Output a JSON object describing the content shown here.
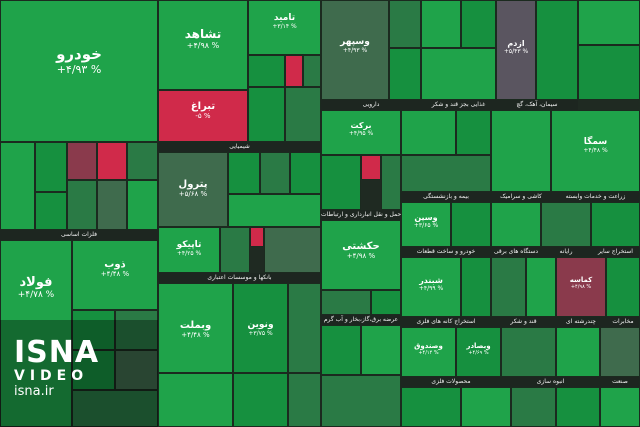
{
  "tiles": {
    "khodro": {
      "name": "خودرو",
      "pct": "+۴/۹۳ %"
    },
    "tashad": {
      "name": "تشاهد",
      "pct": "+۴/۹۸ %"
    },
    "tabragh": {
      "name": "تبراغ",
      "pct": "-۵ %"
    },
    "tamid": {
      "name": "تامید",
      "pct": "+۳/۱۴ %"
    },
    "vsepahr": {
      "name": "وسپهر",
      "pct": "+۴/۹۳ %"
    },
    "kezdam": {
      "name": "ازدم",
      "pct": "+۵/۴۳ %"
    },
    "petrol": {
      "name": "پترول",
      "pct": "+۵/۶۸ %"
    },
    "tapico": {
      "name": "تاپیکو",
      "pct": "+۴/۲۵ %"
    },
    "hekeshti": {
      "name": "حکشتی",
      "pct": "+۴/۹۸ %"
    },
    "fooolad": {
      "name": "فولاد",
      "pct": "+۴/۷۸ %"
    },
    "zob": {
      "name": "ذوب",
      "pct": "+۴/۴۸ %"
    },
    "vmelat": {
      "name": "وبملت",
      "pct": "+۴/۴۸ %"
    },
    "vnovin": {
      "name": "ونوین",
      "pct": "+۳/۷۵ %"
    },
    "vsina": {
      "name": "وسین",
      "pct": "+۳/۶۵ %"
    },
    "shabandar": {
      "name": "شبندر",
      "pct": "+۴/۹۹ %"
    },
    "semga": {
      "name": "سمگا",
      "pct": "+۴/۴۸ %"
    },
    "barekat": {
      "name": "برکت",
      "pct": "+۴/۹۵ %"
    },
    "kema": {
      "name": "کماسه",
      "pct": "+۴/۹۸ %"
    },
    "vsadr": {
      "name": "وصندوق",
      "pct": "+۴/۱۴ %"
    },
    "vbpasar": {
      "name": "وبصادر",
      "pct": "+۴/۶۹ %"
    }
  },
  "sectors": {
    "vasayel": "فلزات اساسی",
    "shimiaei": "شیمیایی",
    "daroui": "دارویی",
    "ghazaei": "غذایی بجز قند و شکر",
    "siman": "سیمان، آهک، گچ",
    "hamlonaghl": "حمل و نقل انبارداری و ارتباطات",
    "bimeh": "بیمه و بازنشستگی",
    "kashi": "کاشی و سرامیک",
    "zeraat": "زراعت و خدمات وابسته",
    "bank": "بانکها و موسسات اعتباری",
    "arzeh": "عرضه برق،گاز،بخار و آب گرم",
    "mahsoolat": "محصولات فلزی",
    "estekhraj": "استخراج کانه های فلزی",
    "ghand": "قند و شکر",
    "khodroSec": "خودرو و ساخت قطعات",
    "dastgah": "دستگاه های برقی",
    "raie": "رایانه",
    "estekhrajSayer": "استخراج سایر",
    "enbohsazi": "انبوه سازی",
    "chandreshte": "چندرشته ای",
    "mokhaberat": "مخابرات",
    "sanat": "صنعت"
  },
  "logo": {
    "line1": "ISNA",
    "line2": "VIDEO",
    "line3": "isna.ir"
  },
  "colors": {
    "up_strong": "#1fa34a",
    "up": "#2a7a45",
    "neutral": "#4d5c52",
    "down": "#d02a4a"
  }
}
